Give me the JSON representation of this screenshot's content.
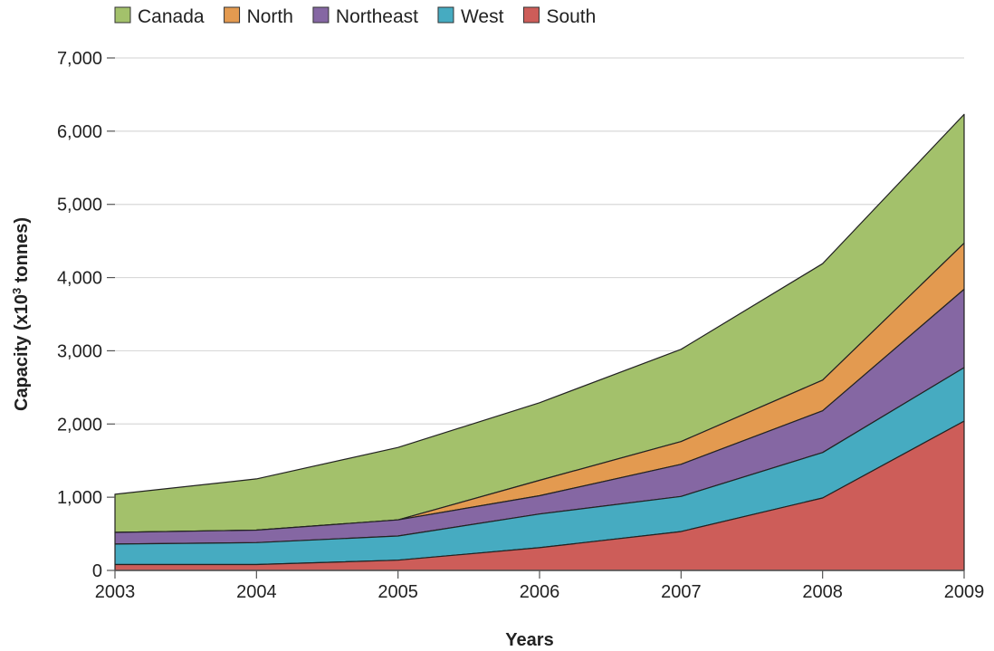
{
  "chart_data": {
    "type": "area",
    "stacked": true,
    "x": [
      2003,
      2004,
      2005,
      2006,
      2007,
      2008,
      2009
    ],
    "xlabel": "Years",
    "ylabel": {
      "prefix": "Capacity (x10",
      "superscript": "3",
      "suffix": " tonnes)"
    },
    "ylim": [
      0,
      7000
    ],
    "yticks": [
      0,
      1000,
      2000,
      3000,
      4000,
      5000,
      6000,
      7000
    ],
    "ytick_labels": [
      "0",
      "1,000",
      "2,000",
      "3,000",
      "4,000",
      "5,000",
      "6,000",
      "7,000"
    ],
    "xtick_labels": [
      "2003",
      "2004",
      "2005",
      "2006",
      "2007",
      "2008",
      "2009"
    ],
    "grid": "horizontal",
    "legend_position": "top-left",
    "legend": [
      {
        "name": "Canada",
        "color": "#A3C16B"
      },
      {
        "name": "North",
        "color": "#E39A50"
      },
      {
        "name": "Northeast",
        "color": "#8567A3"
      },
      {
        "name": "West",
        "color": "#46ABC1"
      },
      {
        "name": "South",
        "color": "#CD5D59"
      }
    ],
    "series": [
      {
        "name": "South",
        "color": "#CD5D59",
        "values": [
          80,
          80,
          140,
          310,
          530,
          990,
          2040
        ]
      },
      {
        "name": "West",
        "color": "#46ABC1",
        "values": [
          280,
          300,
          330,
          460,
          480,
          620,
          730
        ]
      },
      {
        "name": "Northeast",
        "color": "#8567A3",
        "values": [
          160,
          170,
          220,
          250,
          440,
          570,
          1070
        ]
      },
      {
        "name": "North",
        "color": "#E39A50",
        "values": [
          0,
          0,
          0,
          210,
          310,
          420,
          630
        ]
      },
      {
        "name": "Canada",
        "color": "#A3C16B",
        "values": [
          520,
          700,
          990,
          1060,
          1260,
          1590,
          1760
        ]
      }
    ]
  }
}
